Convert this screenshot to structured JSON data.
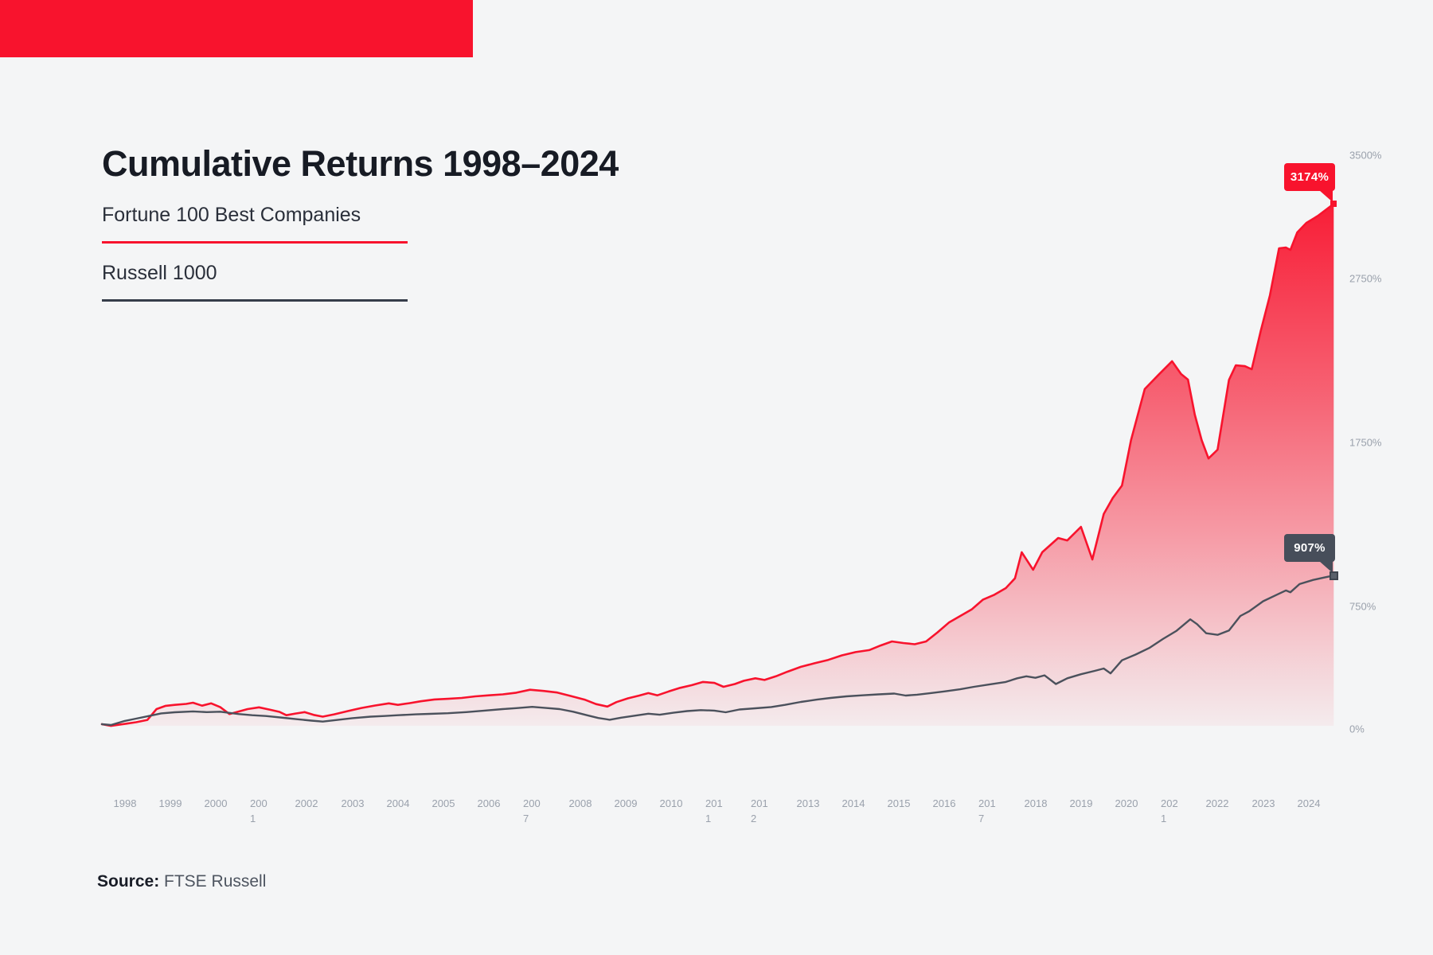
{
  "colors": {
    "background": "#f4f5f6",
    "accent_bar": "#f8132d",
    "fortune_red": "#f8132d",
    "russell_dark": "#3f4552",
    "tick_gray": "#9aa1ac",
    "callout_dark_bg": "#474e5a"
  },
  "header": {
    "title": "Cumulative Returns 1998–2024"
  },
  "legend": {
    "items": [
      {
        "label": "Fortune 100 Best Companies",
        "color": "#f8132d"
      },
      {
        "label": "Russell 1000",
        "color": "#3f4552"
      }
    ]
  },
  "source": {
    "label": "Source:",
    "value": " FTSE Russell"
  },
  "chart_data": {
    "type": "area",
    "title": "Cumulative Returns 1998–2024",
    "xlabel": "",
    "ylabel": "",
    "grid": false,
    "legend_position": "top-left",
    "x_axis": {
      "years": [
        1998,
        1999,
        2000,
        2001,
        2002,
        2003,
        2004,
        2005,
        2006,
        2007,
        2008,
        2009,
        2010,
        2011,
        2012,
        2013,
        2014,
        2015,
        2016,
        2017,
        2018,
        2019,
        2020,
        2021,
        2022,
        2023,
        2024
      ],
      "wrapped_years": [
        2001,
        2007,
        2011,
        2012,
        2017,
        2021
      ]
    },
    "y_axis": {
      "unit": "%",
      "tick_values": [
        3500,
        2750,
        1750,
        750,
        0
      ],
      "tick_labels": [
        "3500%",
        "2750%",
        "1750%",
        "750%",
        "0%"
      ],
      "range": [
        0,
        3500
      ]
    },
    "series": [
      {
        "name": "Fortune 100 Best Companies",
        "color": "#f8132d",
        "fill": "red-gradient",
        "end_value": 3174,
        "end_label": "3174%",
        "points": [
          [
            1998.0,
            0
          ],
          [
            1998.2,
            -10
          ],
          [
            1998.35,
            -4
          ],
          [
            1998.55,
            4
          ],
          [
            1998.75,
            12
          ],
          [
            1999.0,
            26
          ],
          [
            1999.2,
            92
          ],
          [
            1999.4,
            112
          ],
          [
            1999.6,
            118
          ],
          [
            1999.85,
            124
          ],
          [
            2000.0,
            131
          ],
          [
            2000.2,
            113
          ],
          [
            2000.4,
            127
          ],
          [
            2000.6,
            104
          ],
          [
            2000.8,
            62
          ],
          [
            2001.0,
            77
          ],
          [
            2001.2,
            92
          ],
          [
            2001.45,
            103
          ],
          [
            2001.7,
            88
          ],
          [
            2001.9,
            75
          ],
          [
            2002.05,
            55
          ],
          [
            2002.25,
            65
          ],
          [
            2002.45,
            74
          ],
          [
            2002.65,
            57
          ],
          [
            2002.85,
            46
          ],
          [
            2003.1,
            60
          ],
          [
            2003.4,
            80
          ],
          [
            2003.7,
            99
          ],
          [
            2004.0,
            114
          ],
          [
            2004.3,
            127
          ],
          [
            2004.5,
            118
          ],
          [
            2004.75,
            128
          ],
          [
            2005.0,
            140
          ],
          [
            2005.3,
            151
          ],
          [
            2005.6,
            155
          ],
          [
            2005.9,
            160
          ],
          [
            2006.2,
            170
          ],
          [
            2006.5,
            176
          ],
          [
            2006.8,
            182
          ],
          [
            2007.1,
            192
          ],
          [
            2007.4,
            210
          ],
          [
            2007.7,
            203
          ],
          [
            2008.0,
            193
          ],
          [
            2008.3,
            172
          ],
          [
            2008.6,
            150
          ],
          [
            2008.85,
            123
          ],
          [
            2009.1,
            108
          ],
          [
            2009.3,
            135
          ],
          [
            2009.55,
            158
          ],
          [
            2009.8,
            175
          ],
          [
            2010.0,
            190
          ],
          [
            2010.2,
            176
          ],
          [
            2010.45,
            200
          ],
          [
            2010.7,
            222
          ],
          [
            2010.95,
            238
          ],
          [
            2011.2,
            258
          ],
          [
            2011.45,
            252
          ],
          [
            2011.65,
            228
          ],
          [
            2011.9,
            245
          ],
          [
            2012.1,
            265
          ],
          [
            2012.35,
            280
          ],
          [
            2012.55,
            270
          ],
          [
            2012.8,
            292
          ],
          [
            2013.05,
            320
          ],
          [
            2013.35,
            350
          ],
          [
            2013.65,
            372
          ],
          [
            2013.95,
            392
          ],
          [
            2014.25,
            420
          ],
          [
            2014.55,
            440
          ],
          [
            2014.85,
            452
          ],
          [
            2015.1,
            480
          ],
          [
            2015.35,
            505
          ],
          [
            2015.6,
            495
          ],
          [
            2015.85,
            488
          ],
          [
            2016.1,
            505
          ],
          [
            2016.35,
            560
          ],
          [
            2016.6,
            620
          ],
          [
            2016.85,
            660
          ],
          [
            2017.1,
            700
          ],
          [
            2017.35,
            760
          ],
          [
            2017.6,
            790
          ],
          [
            2017.85,
            830
          ],
          [
            2018.05,
            890
          ],
          [
            2018.2,
            1049
          ],
          [
            2018.45,
            942
          ],
          [
            2018.65,
            1049
          ],
          [
            2019.0,
            1136
          ],
          [
            2019.2,
            1121
          ],
          [
            2019.5,
            1204
          ],
          [
            2019.75,
            1005
          ],
          [
            2020.0,
            1282
          ],
          [
            2020.2,
            1380
          ],
          [
            2020.4,
            1456
          ],
          [
            2020.6,
            1733
          ],
          [
            2020.9,
            2044
          ],
          [
            2021.2,
            2130
          ],
          [
            2021.5,
            2214
          ],
          [
            2021.7,
            2136
          ],
          [
            2021.85,
            2102
          ],
          [
            2022.0,
            1888
          ],
          [
            2022.15,
            1733
          ],
          [
            2022.3,
            1621
          ],
          [
            2022.5,
            1675
          ],
          [
            2022.75,
            2100
          ],
          [
            2022.9,
            2189
          ],
          [
            2023.1,
            2184
          ],
          [
            2023.25,
            2165
          ],
          [
            2023.45,
            2400
          ],
          [
            2023.65,
            2617
          ],
          [
            2023.85,
            2903
          ],
          [
            2024.0,
            2908
          ],
          [
            2024.1,
            2893
          ],
          [
            2024.25,
            3000
          ],
          [
            2024.45,
            3058
          ],
          [
            2024.7,
            3100
          ],
          [
            2025.05,
            3174
          ]
        ]
      },
      {
        "name": "Russell 1000",
        "color": "#3f4552",
        "fill": "none",
        "end_value": 907,
        "end_label": "907%",
        "points": [
          [
            1998.0,
            0
          ],
          [
            1998.2,
            -5
          ],
          [
            1998.5,
            20
          ],
          [
            1998.75,
            34
          ],
          [
            1999.0,
            48
          ],
          [
            1999.3,
            66
          ],
          [
            1999.6,
            73
          ],
          [
            2000.0,
            78
          ],
          [
            2000.3,
            74
          ],
          [
            2000.6,
            76
          ],
          [
            2001.0,
            62
          ],
          [
            2001.3,
            55
          ],
          [
            2001.6,
            50
          ],
          [
            2002.0,
            39
          ],
          [
            2002.3,
            30
          ],
          [
            2002.6,
            22
          ],
          [
            2002.85,
            16
          ],
          [
            2003.1,
            24
          ],
          [
            2003.5,
            37
          ],
          [
            2003.9,
            46
          ],
          [
            2004.2,
            50
          ],
          [
            2004.5,
            55
          ],
          [
            2004.9,
            60
          ],
          [
            2005.2,
            63
          ],
          [
            2005.6,
            67
          ],
          [
            2006.0,
            74
          ],
          [
            2006.4,
            83
          ],
          [
            2006.8,
            92
          ],
          [
            2007.1,
            98
          ],
          [
            2007.45,
            106
          ],
          [
            2007.75,
            99
          ],
          [
            2008.05,
            92
          ],
          [
            2008.35,
            76
          ],
          [
            2008.65,
            55
          ],
          [
            2008.9,
            38
          ],
          [
            2009.15,
            27
          ],
          [
            2009.4,
            40
          ],
          [
            2009.7,
            52
          ],
          [
            2010.0,
            64
          ],
          [
            2010.25,
            58
          ],
          [
            2010.55,
            70
          ],
          [
            2010.85,
            80
          ],
          [
            2011.15,
            86
          ],
          [
            2011.45,
            83
          ],
          [
            2011.7,
            73
          ],
          [
            2012.0,
            90
          ],
          [
            2012.35,
            97
          ],
          [
            2012.7,
            105
          ],
          [
            2013.0,
            118
          ],
          [
            2013.35,
            136
          ],
          [
            2013.7,
            150
          ],
          [
            2014.0,
            160
          ],
          [
            2014.35,
            170
          ],
          [
            2014.7,
            176
          ],
          [
            2015.05,
            182
          ],
          [
            2015.4,
            187
          ],
          [
            2015.65,
            175
          ],
          [
            2015.9,
            180
          ],
          [
            2016.2,
            190
          ],
          [
            2016.5,
            200
          ],
          [
            2016.85,
            213
          ],
          [
            2017.15,
            228
          ],
          [
            2017.5,
            243
          ],
          [
            2017.85,
            258
          ],
          [
            2018.1,
            280
          ],
          [
            2018.3,
            292
          ],
          [
            2018.5,
            283
          ],
          [
            2018.7,
            298
          ],
          [
            2018.95,
            245
          ],
          [
            2019.2,
            280
          ],
          [
            2019.5,
            305
          ],
          [
            2019.8,
            325
          ],
          [
            2020.0,
            340
          ],
          [
            2020.15,
            310
          ],
          [
            2020.4,
            390
          ],
          [
            2020.7,
            425
          ],
          [
            2021.0,
            465
          ],
          [
            2021.3,
            520
          ],
          [
            2021.6,
            570
          ],
          [
            2021.9,
            640
          ],
          [
            2022.05,
            610
          ],
          [
            2022.25,
            555
          ],
          [
            2022.5,
            545
          ],
          [
            2022.75,
            572
          ],
          [
            2023.0,
            660
          ],
          [
            2023.2,
            690
          ],
          [
            2023.5,
            750
          ],
          [
            2023.8,
            790
          ],
          [
            2024.0,
            816
          ],
          [
            2024.1,
            805
          ],
          [
            2024.3,
            855
          ],
          [
            2024.6,
            880
          ],
          [
            2024.85,
            895
          ],
          [
            2025.05,
            907
          ]
        ]
      }
    ]
  }
}
